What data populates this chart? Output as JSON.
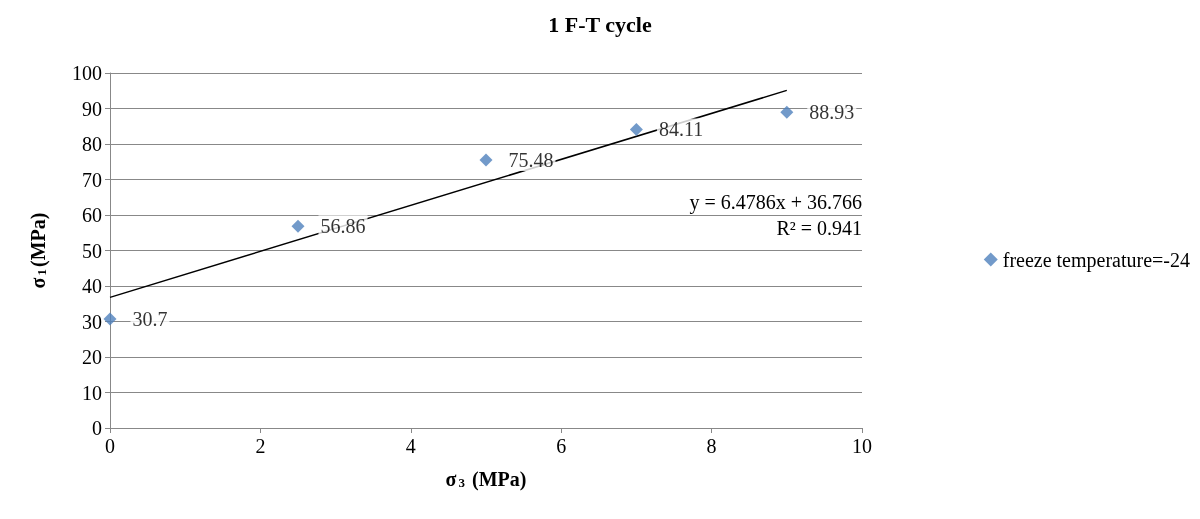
{
  "chart_data": {
    "type": "scatter",
    "title": "1 F-T cycle",
    "xlabel": "σ$_{3}$ (MPa)",
    "ylabel": "σ$_{1}$(MPa)",
    "annotations": [
      "y = 6.4786x + 36.766",
      "R² = 0.941"
    ],
    "series": [
      {
        "name": "freeze temperature=-24",
        "marker": "diamond",
        "color": "#4f81bd",
        "x": [
          0,
          2.5,
          5,
          7,
          9
        ],
        "values": [
          30.7,
          56.86,
          75.48,
          84.11,
          88.93
        ],
        "value_labels": [
          "30.7",
          "56.86",
          "75.48",
          "84.11",
          "88.93"
        ]
      },
      {
        "type": "line",
        "marker": "none",
        "line_style": "solid",
        "color": "#000000",
        "x": [
          0,
          9
        ],
        "values": [
          36.8,
          95.1
        ]
      }
    ],
    "xlim": [
      0,
      10
    ],
    "xticks": [
      0,
      2,
      4,
      6,
      8,
      10
    ],
    "ylim": [
      0,
      100
    ],
    "yticks": [
      0,
      10,
      20,
      30,
      40,
      50,
      60,
      70,
      80,
      90,
      100
    ],
    "grid": "y",
    "legend": "right"
  }
}
